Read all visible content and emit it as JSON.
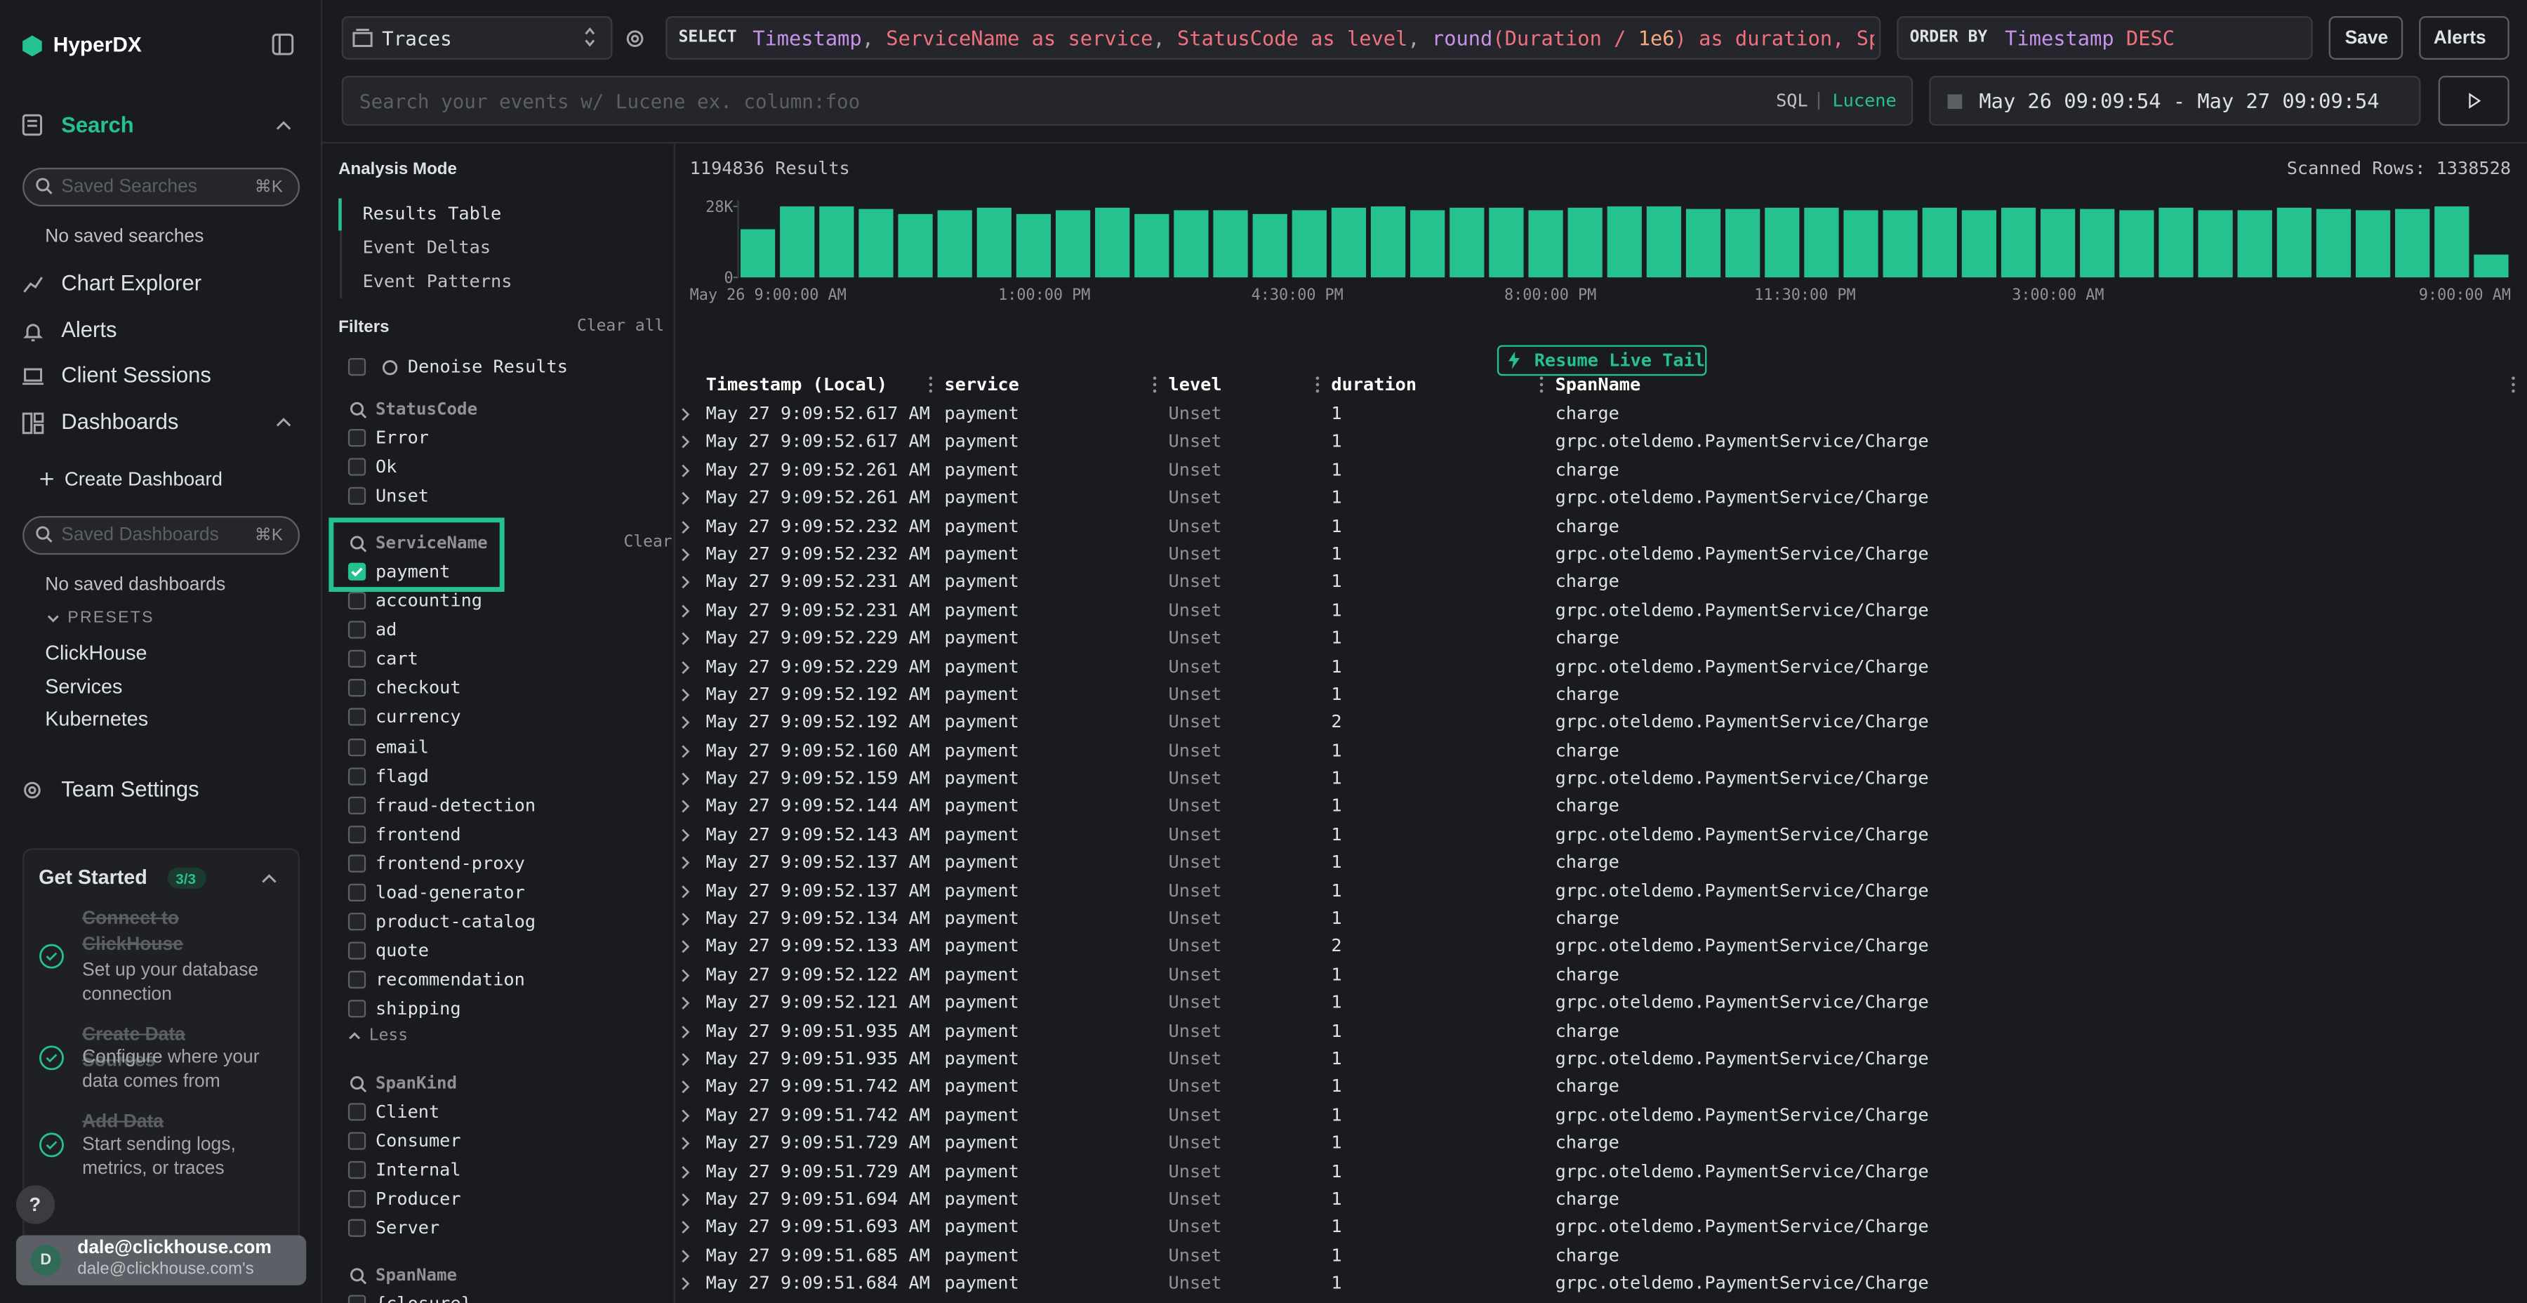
{
  "sidebar": {
    "logo": "HyperDX",
    "search": "Search",
    "saved_searches_placeholder": "Saved Searches",
    "saved_searches_shortcut": "⌘K",
    "no_saved_searches": "No saved searches",
    "nav": [
      "Chart Explorer",
      "Alerts",
      "Client Sessions"
    ],
    "dashboards": "Dashboards",
    "create_dashboard": "Create Dashboard",
    "saved_dashboards_placeholder": "Saved Dashboards",
    "saved_dashboards_shortcut": "⌘K",
    "no_saved_dashboards": "No saved dashboards",
    "presets_label": "PRESETS",
    "presets": [
      "ClickHouse",
      "Services",
      "Kubernetes"
    ],
    "team_settings": "Team Settings",
    "get_started": {
      "title": "Get Started",
      "progress": "3/3",
      "steps": [
        {
          "title": "Connect to ClickHouse",
          "description": "Set up your database connection"
        },
        {
          "title": "Create Data Sources",
          "description": "Configure where your data comes from"
        },
        {
          "title": "Add Data",
          "description": "Start sending logs, metrics, or traces"
        }
      ]
    },
    "help": "?",
    "user": {
      "avatar": "D",
      "email": "dale@clickhouse.com",
      "team": "dale@clickhouse.com's"
    }
  },
  "toolbar": {
    "source": "Traces",
    "select_keyword": "SELECT",
    "select_tokens": [
      {
        "text": "Timestamp",
        "color": "#c792ea"
      },
      {
        "text": ", ",
        "color": "#a6a7ab"
      },
      {
        "text": "ServiceName as service",
        "color": "#f0717d"
      },
      {
        "text": ", ",
        "color": "#a6a7ab"
      },
      {
        "text": "StatusCode as level",
        "color": "#f0717d"
      },
      {
        "text": ", ",
        "color": "#a6a7ab"
      },
      {
        "text": "round",
        "color": "#c792ea"
      },
      {
        "text": "(Duration / ",
        "color": "#f0717d"
      },
      {
        "text": "1e6",
        "color": "#f5a97f"
      },
      {
        "text": ") as duration, Span",
        "color": "#f0717d"
      }
    ],
    "order_keyword": "ORDER BY",
    "order_tokens": [
      {
        "text": "Timestamp",
        "color": "#c792ea"
      },
      {
        "text": " DESC",
        "color": "#f0717d"
      }
    ],
    "save": "Save",
    "alerts": "Alerts",
    "search_placeholder": "Search your events w/ Lucene ex. column:foo",
    "query_languages": [
      {
        "text": "SQL",
        "color": "#c1c2c5"
      },
      {
        "text": "Lucene",
        "color": "#25c28f"
      }
    ],
    "date_range": "May 26 09:09:54 - May 27 09:09:54"
  },
  "filters_panel": {
    "analysis_mode": "Analysis Mode",
    "modes": [
      "Results Table",
      "Event Deltas",
      "Event Patterns"
    ],
    "filters": "Filters",
    "clear_all": "Clear all",
    "denoise": "Denoise Results",
    "groups": [
      {
        "name": "StatusCode",
        "options": [
          "Error",
          "Ok",
          "Unset"
        ],
        "checked": []
      },
      {
        "name": "ServiceName",
        "clear": "Clear",
        "options": [
          "payment",
          "accounting",
          "ad",
          "cart",
          "checkout",
          "currency",
          "email",
          "flagd",
          "fraud-detection",
          "frontend",
          "frontend-proxy",
          "load-generator",
          "product-catalog",
          "quote",
          "recommendation",
          "shipping"
        ],
        "checked": [
          0
        ],
        "less": "Less"
      },
      {
        "name": "SpanKind",
        "options": [
          "Client",
          "Consumer",
          "Internal",
          "Producer",
          "Server"
        ],
        "checked": []
      },
      {
        "name": "SpanName",
        "options": [
          "{closure}"
        ],
        "checked": []
      }
    ]
  },
  "results": {
    "count": "1194836 Results",
    "scanned": "Scanned Rows: 1338528",
    "live_tail": "Resume Live Tail"
  },
  "histogram": {
    "color": "#25c28f",
    "ylim": [
      0,
      28000
    ],
    "yticks": [
      {
        "value": 0,
        "label": "0"
      },
      {
        "value": 28000,
        "label": "28K"
      }
    ],
    "xlabels": [
      "May 26 9:00:00 AM",
      "1:00:00 PM",
      "4:30:00 PM",
      "8:00:00 PM",
      "11:30:00 PM",
      "3:00:00 AM",
      "9:00:00 AM"
    ],
    "values": [
      19000,
      28000,
      28000,
      27000,
      25000,
      26500,
      27500,
      25000,
      26500,
      27500,
      25000,
      26500,
      26500,
      25000,
      26500,
      27500,
      28000,
      26500,
      27500,
      27500,
      26500,
      27500,
      28000,
      28000,
      27000,
      27000,
      27500,
      27500,
      26500,
      26500,
      27500,
      26500,
      27500,
      27000,
      27000,
      26500,
      27500,
      26500,
      26500,
      27500,
      27000,
      26500,
      27000,
      28000,
      9000
    ]
  },
  "table": {
    "columns": [
      "Timestamp (Local)",
      "service",
      "level",
      "duration",
      "SpanName"
    ],
    "rows": [
      [
        "May 27 9:09:52.617 AM",
        "payment",
        "Unset",
        1,
        "charge"
      ],
      [
        "May 27 9:09:52.617 AM",
        "payment",
        "Unset",
        1,
        "grpc.oteldemo.PaymentService/Charge"
      ],
      [
        "May 27 9:09:52.261 AM",
        "payment",
        "Unset",
        1,
        "charge"
      ],
      [
        "May 27 9:09:52.261 AM",
        "payment",
        "Unset",
        1,
        "grpc.oteldemo.PaymentService/Charge"
      ],
      [
        "May 27 9:09:52.232 AM",
        "payment",
        "Unset",
        1,
        "charge"
      ],
      [
        "May 27 9:09:52.232 AM",
        "payment",
        "Unset",
        1,
        "grpc.oteldemo.PaymentService/Charge"
      ],
      [
        "May 27 9:09:52.231 AM",
        "payment",
        "Unset",
        1,
        "charge"
      ],
      [
        "May 27 9:09:52.231 AM",
        "payment",
        "Unset",
        1,
        "grpc.oteldemo.PaymentService/Charge"
      ],
      [
        "May 27 9:09:52.229 AM",
        "payment",
        "Unset",
        1,
        "charge"
      ],
      [
        "May 27 9:09:52.229 AM",
        "payment",
        "Unset",
        1,
        "grpc.oteldemo.PaymentService/Charge"
      ],
      [
        "May 27 9:09:52.192 AM",
        "payment",
        "Unset",
        1,
        "charge"
      ],
      [
        "May 27 9:09:52.192 AM",
        "payment",
        "Unset",
        2,
        "grpc.oteldemo.PaymentService/Charge"
      ],
      [
        "May 27 9:09:52.160 AM",
        "payment",
        "Unset",
        1,
        "charge"
      ],
      [
        "May 27 9:09:52.159 AM",
        "payment",
        "Unset",
        1,
        "grpc.oteldemo.PaymentService/Charge"
      ],
      [
        "May 27 9:09:52.144 AM",
        "payment",
        "Unset",
        1,
        "charge"
      ],
      [
        "May 27 9:09:52.143 AM",
        "payment",
        "Unset",
        1,
        "grpc.oteldemo.PaymentService/Charge"
      ],
      [
        "May 27 9:09:52.137 AM",
        "payment",
        "Unset",
        1,
        "charge"
      ],
      [
        "May 27 9:09:52.137 AM",
        "payment",
        "Unset",
        1,
        "grpc.oteldemo.PaymentService/Charge"
      ],
      [
        "May 27 9:09:52.134 AM",
        "payment",
        "Unset",
        1,
        "charge"
      ],
      [
        "May 27 9:09:52.133 AM",
        "payment",
        "Unset",
        2,
        "grpc.oteldemo.PaymentService/Charge"
      ],
      [
        "May 27 9:09:52.122 AM",
        "payment",
        "Unset",
        1,
        "charge"
      ],
      [
        "May 27 9:09:52.121 AM",
        "payment",
        "Unset",
        1,
        "grpc.oteldemo.PaymentService/Charge"
      ],
      [
        "May 27 9:09:51.935 AM",
        "payment",
        "Unset",
        1,
        "charge"
      ],
      [
        "May 27 9:09:51.935 AM",
        "payment",
        "Unset",
        1,
        "grpc.oteldemo.PaymentService/Charge"
      ],
      [
        "May 27 9:09:51.742 AM",
        "payment",
        "Unset",
        1,
        "charge"
      ],
      [
        "May 27 9:09:51.742 AM",
        "payment",
        "Unset",
        1,
        "grpc.oteldemo.PaymentService/Charge"
      ],
      [
        "May 27 9:09:51.729 AM",
        "payment",
        "Unset",
        1,
        "charge"
      ],
      [
        "May 27 9:09:51.729 AM",
        "payment",
        "Unset",
        1,
        "grpc.oteldemo.PaymentService/Charge"
      ],
      [
        "May 27 9:09:51.694 AM",
        "payment",
        "Unset",
        1,
        "charge"
      ],
      [
        "May 27 9:09:51.693 AM",
        "payment",
        "Unset",
        1,
        "grpc.oteldemo.PaymentService/Charge"
      ],
      [
        "May 27 9:09:51.685 AM",
        "payment",
        "Unset",
        1,
        "charge"
      ],
      [
        "May 27 9:09:51.684 AM",
        "payment",
        "Unset",
        1,
        "grpc.oteldemo.PaymentService/Charge"
      ]
    ]
  }
}
